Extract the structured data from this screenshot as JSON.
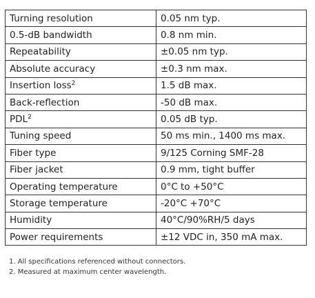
{
  "table": {
    "rows": [
      {
        "label": "Turning resolution",
        "value": "0.05 nm typ."
      },
      {
        "label": "0.5-dB bandwidth",
        "value": "0.8 nm min."
      },
      {
        "label": "Repeatability",
        "value": "±0.05 nm typ."
      },
      {
        "label": "Absolute accuracy",
        "value": "±0.3 nm max."
      },
      {
        "label": "Insertion loss",
        "note": "2",
        "value": "1.5 dB max."
      },
      {
        "label": "Back-reflection",
        "value": "-50 dB max."
      },
      {
        "label": "PDL",
        "note": "2",
        "value": "0.05 dB typ."
      },
      {
        "label": "Tuning speed",
        "value": "50 ms min., 1400 ms max."
      },
      {
        "label": "Fiber type",
        "value": "9/125 Corning SMF-28"
      },
      {
        "label": "Fiber jacket",
        "value": "0.9 mm, tight buffer"
      },
      {
        "label": "Operating temperature",
        "value": "0°C to +50°C"
      },
      {
        "label": "Storage temperature",
        "value": "-20°C +70°C"
      },
      {
        "label": "Humidity",
        "value": "40°C/90%RH/5 days"
      },
      {
        "label": "Power requirements",
        "value": "±12 VDC in, 350 mA max."
      }
    ]
  },
  "footnotes": [
    "1. All specifications referenced without connectors.",
    "2. Measured at maximum center wavelength."
  ]
}
